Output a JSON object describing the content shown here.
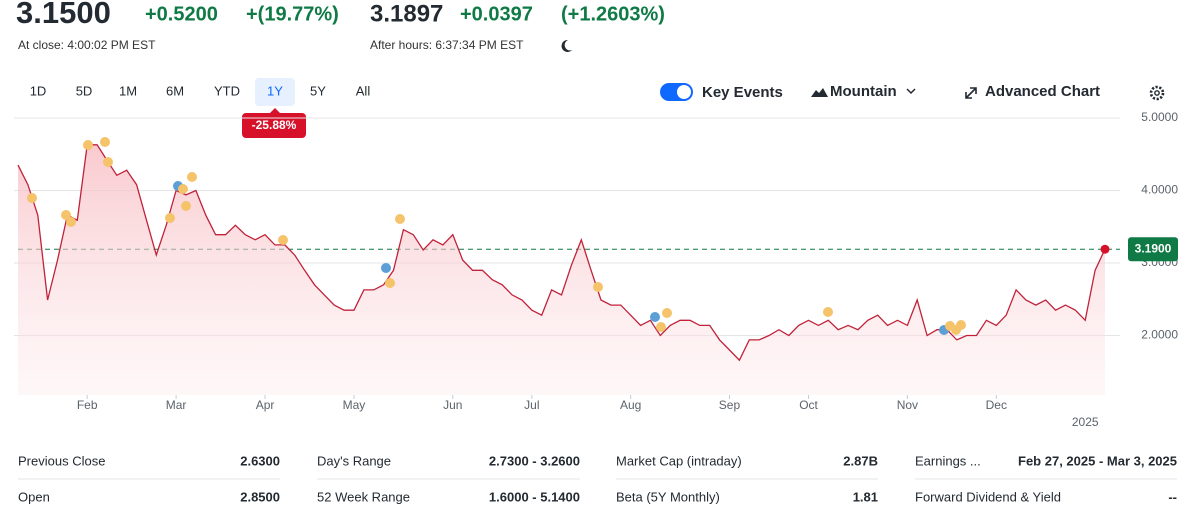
{
  "quote": {
    "price": "3.1500",
    "change": "+0.5200",
    "change_percent": "+(19.77%)",
    "close_time": "At close: 4:00:02 PM EST",
    "after_hours_price": "3.1897",
    "after_hours_change": "+0.0397",
    "after_hours_change_percent": "(+1.2603%)",
    "after_hours_time": "After hours: 6:37:34 PM EST"
  },
  "ranges": [
    "1D",
    "5D",
    "1M",
    "6M",
    "YTD",
    "1Y",
    "5Y",
    "All"
  ],
  "selected_range": "1Y",
  "range_change": "-25.88%",
  "toolbar": {
    "key_events": "Key Events",
    "chart_type": "Mountain",
    "advanced": "Advanced Chart"
  },
  "chart_data": {
    "type": "area",
    "color": "#c0223a",
    "values": [
      4.35,
      4.08,
      3.66,
      2.49,
      3.04,
      3.66,
      3.59,
      4.63,
      4.63,
      4.42,
      4.21,
      4.28,
      4.08,
      3.59,
      3.11,
      3.52,
      4.0,
      3.94,
      4.0,
      3.66,
      3.39,
      3.39,
      3.52,
      3.39,
      3.32,
      3.39,
      3.25,
      3.25,
      3.11,
      2.9,
      2.7,
      2.56,
      2.42,
      2.35,
      2.35,
      2.63,
      2.63,
      2.7,
      2.9,
      3.46,
      3.39,
      3.18,
      3.32,
      3.25,
      3.39,
      3.04,
      2.9,
      2.9,
      2.77,
      2.7,
      2.56,
      2.49,
      2.35,
      2.28,
      2.63,
      2.56,
      2.97,
      3.32,
      2.9,
      2.49,
      2.42,
      2.42,
      2.28,
      2.14,
      2.21,
      2.0,
      2.14,
      2.21,
      2.21,
      2.14,
      2.14,
      1.94,
      1.8,
      1.66,
      1.94,
      1.94,
      2.0,
      2.08,
      2.0,
      2.14,
      2.21,
      2.14,
      2.21,
      2.08,
      2.14,
      2.08,
      2.21,
      2.28,
      2.14,
      2.21,
      2.14,
      2.49,
      2.0,
      2.08,
      2.08,
      1.94,
      2.0,
      2.0,
      2.21,
      2.14,
      2.28,
      2.63,
      2.49,
      2.42,
      2.49,
      2.35,
      2.42,
      2.35,
      2.21,
      2.9,
      3.19
    ],
    "xlim": [
      0,
      110
    ],
    "xticks": [
      {
        "value": 7,
        "label": "Feb"
      },
      {
        "value": 16,
        "label": "Mar"
      },
      {
        "value": 25,
        "label": "Apr"
      },
      {
        "value": 34,
        "label": "May"
      },
      {
        "value": 44,
        "label": "Jun"
      },
      {
        "value": 52,
        "label": "Jul"
      },
      {
        "value": 62,
        "label": "Aug"
      },
      {
        "value": 72,
        "label": "Sep"
      },
      {
        "value": 80,
        "label": "Oct"
      },
      {
        "value": 90,
        "label": "Nov"
      },
      {
        "value": 99,
        "label": "Dec"
      }
    ],
    "year_tick": {
      "value": 108,
      "label": "2025"
    },
    "ylim": [
      1.18,
      5.0
    ],
    "yticks": [
      {
        "value": 5,
        "label": "5.0000"
      },
      {
        "value": 4,
        "label": "4.0000"
      },
      {
        "value": 3,
        "label": "3.0000"
      },
      {
        "value": 2,
        "label": "2.0000"
      }
    ],
    "grid": true,
    "last_price": {
      "value": 3.19,
      "label": "3.1900"
    },
    "last_color": "#0f7a45"
  },
  "stats": [
    [
      [
        "Previous Close",
        "2.6300"
      ],
      [
        "Day's Range",
        "2.7300 - 3.2600"
      ],
      [
        "Market Cap (intraday)",
        "2.87B"
      ],
      [
        "Earnings ...",
        "Feb 27, 2025 - Mar 3, 2025"
      ]
    ],
    [
      [
        "Open",
        "2.8500"
      ],
      [
        "52 Week Range",
        "1.6000 - 5.1400"
      ],
      [
        "Beta (5Y Monthly)",
        "1.81"
      ],
      [
        "Forward Dividend & Yield",
        "--"
      ]
    ]
  ]
}
